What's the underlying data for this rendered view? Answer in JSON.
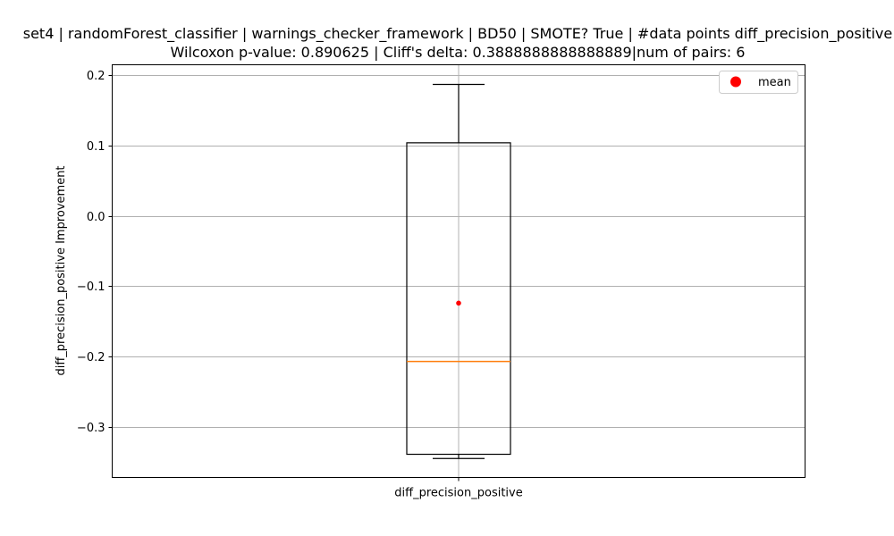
{
  "chart_data": {
    "type": "box",
    "title_line1": "set4 | randomForest_classifier | warnings_checker_framework | BD50 | SMOTE? True | #data points diff_precision_positive",
    "title_line2": "Wilcoxon p-value: 0.890625 | Cliff's delta: 0.3888888888888889|num of pairs: 6",
    "ylabel": "diff_precision_positive Improvement",
    "xlabel": "",
    "categories": [
      "diff_precision_positive"
    ],
    "ylim": [
      -0.372,
      0.215
    ],
    "yticks": [
      0.2,
      0.1,
      0.0,
      -0.1,
      -0.2,
      -0.3
    ],
    "ytick_labels": [
      "0.2",
      "0.1",
      "0.0",
      "−0.1",
      "−0.2",
      "−0.3"
    ],
    "grid": true,
    "box": {
      "whisker_low": -0.345,
      "q1": -0.339,
      "median": -0.207,
      "q3": 0.104,
      "whisker_high": 0.187,
      "mean": -0.124
    },
    "legend": {
      "placement": "top-right",
      "entries": [
        "mean"
      ]
    },
    "colors": {
      "box": "#000000",
      "median": "#ff7f0e",
      "mean": "#ff0000",
      "grid": "#b0b0b0"
    }
  }
}
